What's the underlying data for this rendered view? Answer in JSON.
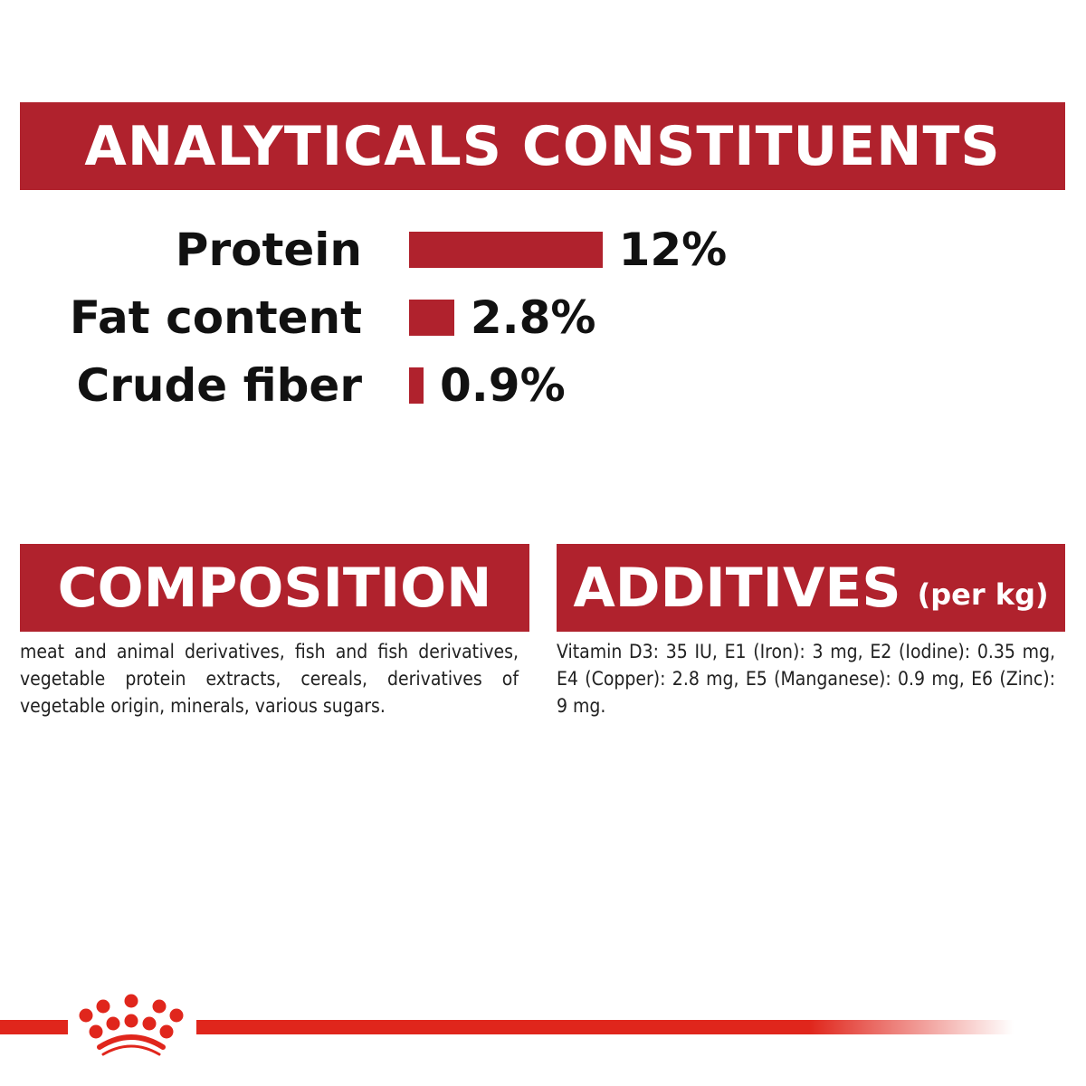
{
  "analytical": {
    "title": "ANALYTICALS CONSTITUENTS",
    "rows": [
      {
        "label": "Protein",
        "value_text": "12%",
        "value": 12
      },
      {
        "label": "Fat content",
        "value_text": "2.8%",
        "value": 2.8
      },
      {
        "label": "Crude fiber",
        "value_text": "0.9%",
        "value": 0.9
      }
    ]
  },
  "composition": {
    "title": "COMPOSITION",
    "text": "meat and animal derivatives, fish and fish derivatives, vegetable protein extracts, cereals, derivatives of vegetable origin, minerals, various sugars."
  },
  "additives": {
    "title": "ADDITIVES",
    "subtitle": "(per kg)",
    "text": "Vitamin D3: 35 IU, E1 (Iron): 3 mg, E2 (Iodine): 0.35 mg, E4 (Copper): 2.8 mg, E5 (Manganese): 0.9 mg, E6 (Zinc): 9 mg."
  },
  "colors": {
    "banner": "#b0222d",
    "bar": "#b0222d",
    "brand_red": "#e0261c"
  },
  "logo": {
    "icon": "royal-canin-crown-icon"
  }
}
